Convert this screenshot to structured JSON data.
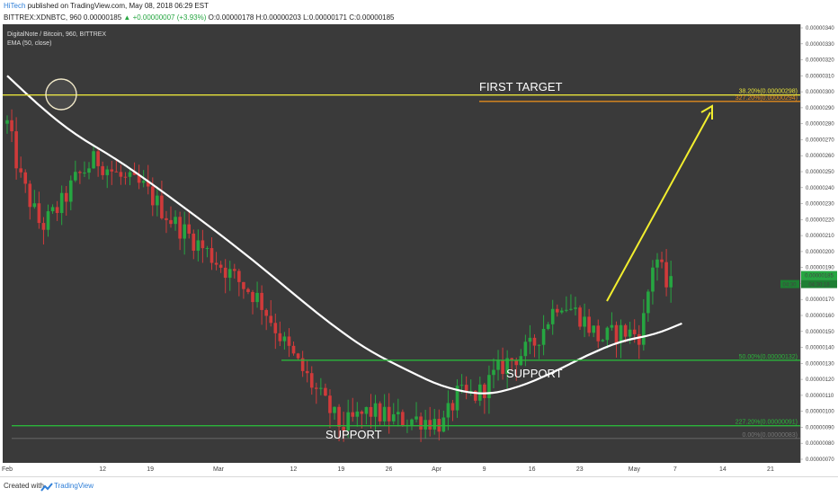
{
  "header": {
    "author": "HiTech",
    "published": " published on TradingView.com, May 08, 2018 06:29 EST",
    "symbol_line": "BITTREX:XDNBTC, 960  0.00000185",
    "change": "▲ +0.00000007 (+3.93%)",
    "ohlc": "O:0.00000178  H:0.00000203  L:0.00000171  C:0.00000185"
  },
  "legend": {
    "title": "DigitalNote / Bitcoin, 960, BITTREX",
    "indicator": "EMA (50, close)"
  },
  "footer": {
    "created_with": "Created with",
    "brand": "TradingView"
  },
  "colors": {
    "background": "#3a3a3a",
    "up": "#26a641",
    "down": "#d03a3a",
    "ema": "#ffffff",
    "target_line": "#e6e13a",
    "fib_orange": "#e08a1e",
    "support_line": "#2bb53a",
    "arrow": "#f2ee2e"
  },
  "annotations": {
    "first_target": "FIRST TARGET",
    "support_1": "SUPPORT",
    "support_2": "SUPPORT"
  },
  "chart_data": {
    "type": "candlestick",
    "title": "DigitalNote / Bitcoin, 960, BITTREX",
    "ylim": [
      7e-07,
      3.4e-06
    ],
    "y_ticks": [
      "0.00000340",
      "0.00000330",
      "0.00000320",
      "0.00000310",
      "0.00000300",
      "0.00000290",
      "0.00000280",
      "0.00000270",
      "0.00000260",
      "0.00000250",
      "0.00000240",
      "0.00000230",
      "0.00000220",
      "0.00000210",
      "0.00000200",
      "0.00000190",
      "0.00000180",
      "0.00000170",
      "0.00000160",
      "0.00000150",
      "0.00000140",
      "0.00000130",
      "0.00000120",
      "0.00000110",
      "0.00000100",
      "0.00000090",
      "0.00000080",
      "0.00000070"
    ],
    "x_ticks": [
      "Feb",
      "12",
      "19",
      "Mar",
      "12",
      "19",
      "26",
      "Apr",
      "9",
      "16",
      "23",
      "May",
      "7",
      "14",
      "21",
      "Jun",
      "11"
    ],
    "fib_levels": [
      {
        "label": "38.20%(0.00000298)",
        "value": 2.98e-06,
        "color": "#e6e13a"
      },
      {
        "label": "327.20%(0.00000294)",
        "value": 2.94e-06,
        "color": "#e08a1e"
      },
      {
        "label": "50.00%(0.00000132)",
        "value": 1.32e-06,
        "color": "#2bb53a"
      },
      {
        "label": "227.20%(0.00000091)",
        "value": 9.1e-07,
        "color": "#2bb53a"
      },
      {
        "label": "0.00%(0.00000083)",
        "value": 8.3e-07,
        "color": "#777777"
      }
    ],
    "last_price": "0.00000185",
    "countdown": "04:30:18",
    "last_price_small": "0.00000185",
    "ema_series": [
      {
        "date": "2018-01-29",
        "value": 3.1e-06
      },
      {
        "date": "2018-02-03",
        "value": 2.9e-06
      },
      {
        "date": "2018-02-08",
        "value": 2.73e-06
      },
      {
        "date": "2018-02-14",
        "value": 2.58e-06
      },
      {
        "date": "2018-02-20",
        "value": 2.4e-06
      },
      {
        "date": "2018-02-27",
        "value": 2.18e-06
      },
      {
        "date": "2018-03-06",
        "value": 1.95e-06
      },
      {
        "date": "2018-03-13",
        "value": 1.7e-06
      },
      {
        "date": "2018-03-18",
        "value": 1.53e-06
      },
      {
        "date": "2018-03-23",
        "value": 1.38e-06
      },
      {
        "date": "2018-03-29",
        "value": 1.25e-06
      },
      {
        "date": "2018-04-03",
        "value": 1.15e-06
      },
      {
        "date": "2018-04-09",
        "value": 1.1e-06
      },
      {
        "date": "2018-04-14",
        "value": 1.15e-06
      },
      {
        "date": "2018-04-19",
        "value": 1.24e-06
      },
      {
        "date": "2018-04-24",
        "value": 1.35e-06
      },
      {
        "date": "2018-04-29",
        "value": 1.44e-06
      },
      {
        "date": "2018-05-04",
        "value": 1.48e-06
      },
      {
        "date": "2018-05-08",
        "value": 1.55e-06
      }
    ],
    "candle_path": [
      {
        "date": "2018-01-29",
        "value": 2.8e-06
      },
      {
        "date": "2018-01-31",
        "value": 2.45e-06
      },
      {
        "date": "2018-02-03",
        "value": 2.15e-06
      },
      {
        "date": "2018-02-06",
        "value": 2.3e-06
      },
      {
        "date": "2018-02-08",
        "value": 2.45e-06
      },
      {
        "date": "2018-02-11",
        "value": 2.58e-06
      },
      {
        "date": "2018-02-15",
        "value": 2.45e-06
      },
      {
        "date": "2018-02-18",
        "value": 2.4e-06
      },
      {
        "date": "2018-02-22",
        "value": 2.2e-06
      },
      {
        "date": "2018-02-26",
        "value": 2.05e-06
      },
      {
        "date": "2018-03-03",
        "value": 1.85e-06
      },
      {
        "date": "2018-03-07",
        "value": 1.7e-06
      },
      {
        "date": "2018-03-11",
        "value": 1.4e-06
      },
      {
        "date": "2018-03-15",
        "value": 1.15e-06
      },
      {
        "date": "2018-03-19",
        "value": 9e-07
      },
      {
        "date": "2018-03-23",
        "value": 1e-06
      },
      {
        "date": "2018-03-27",
        "value": 9.5e-07
      },
      {
        "date": "2018-03-31",
        "value": 9.5e-07
      },
      {
        "date": "2018-04-03",
        "value": 9.2e-07
      },
      {
        "date": "2018-04-05",
        "value": 1.1e-06
      },
      {
        "date": "2018-04-08",
        "value": 1.1e-06
      },
      {
        "date": "2018-04-12",
        "value": 1.3e-06
      },
      {
        "date": "2018-04-16",
        "value": 1.4e-06
      },
      {
        "date": "2018-04-20",
        "value": 1.7e-06
      },
      {
        "date": "2018-04-23",
        "value": 1.6e-06
      },
      {
        "date": "2018-04-26",
        "value": 1.45e-06
      },
      {
        "date": "2018-04-29",
        "value": 1.5e-06
      },
      {
        "date": "2018-05-02",
        "value": 1.48e-06
      },
      {
        "date": "2018-05-04",
        "value": 2e-06
      },
      {
        "date": "2018-05-06",
        "value": 1.75e-06
      },
      {
        "date": "2018-05-07",
        "value": 1.85e-06
      }
    ]
  }
}
